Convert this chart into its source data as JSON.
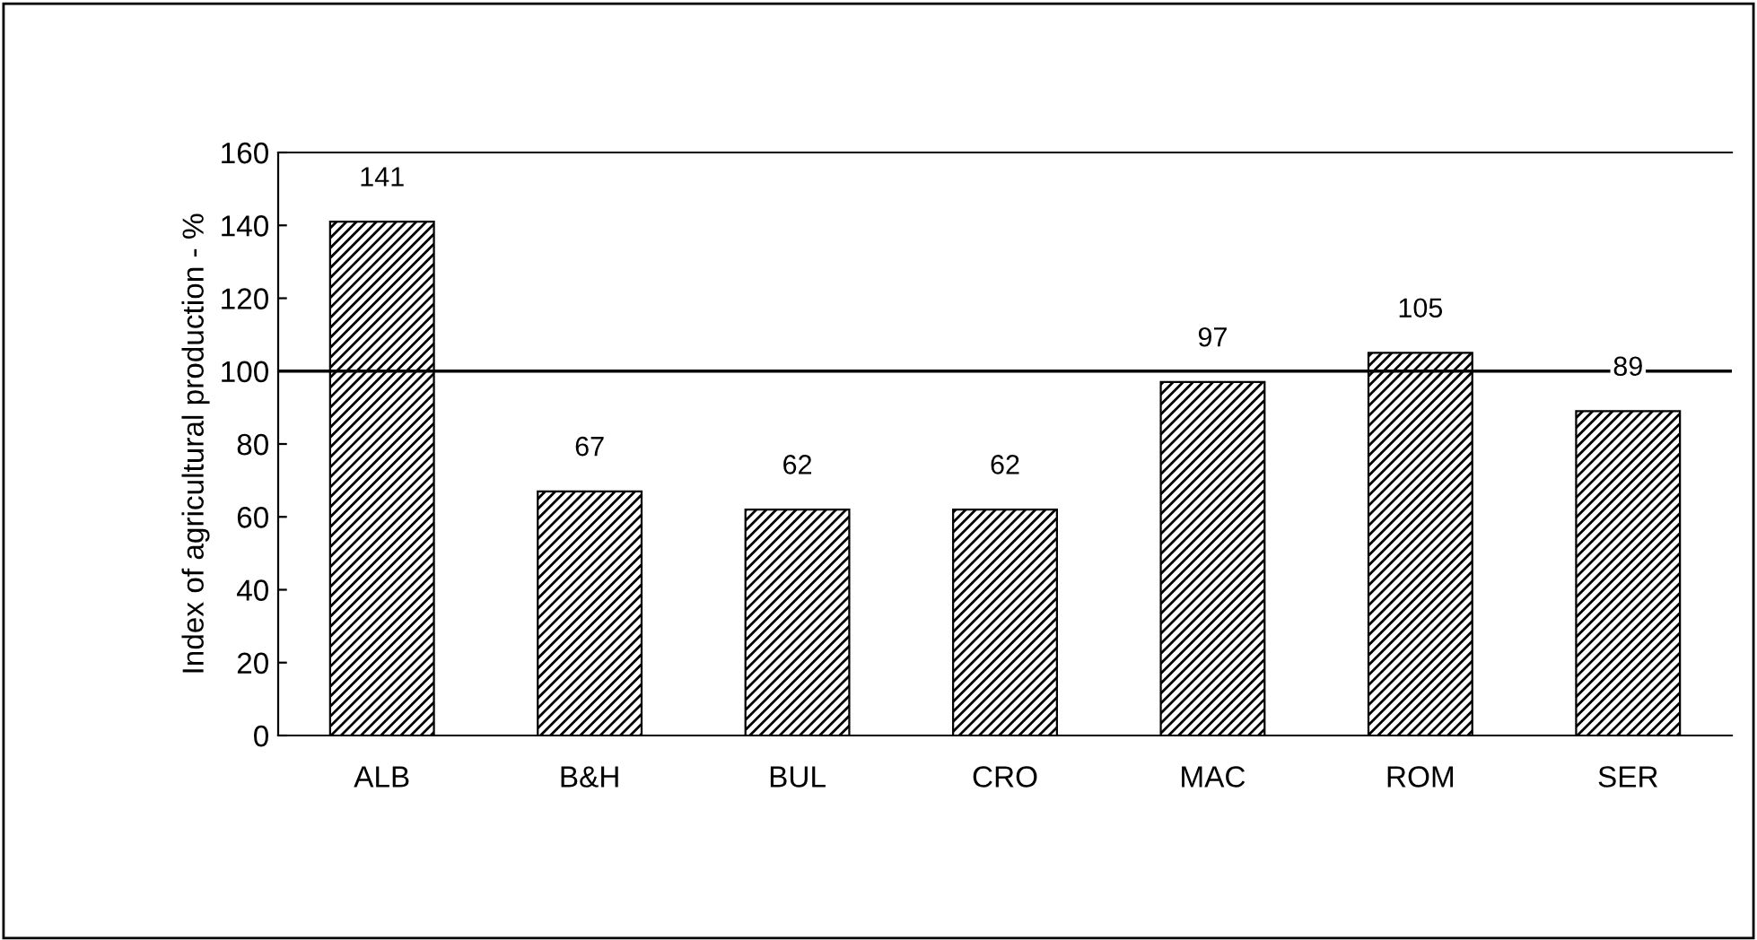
{
  "chart_data": {
    "type": "bar",
    "ylabel": "Index of agricultural production - %",
    "categories": [
      "ALB",
      "B&H",
      "BUL",
      "CRO",
      "MAC",
      "ROM",
      "SER"
    ],
    "values": [
      141,
      67,
      62,
      62,
      97,
      105,
      89
    ],
    "color": "#000000",
    "ylim": [
      0,
      160
    ],
    "yticks": [
      0,
      20,
      40,
      60,
      80,
      100,
      120,
      140,
      160
    ],
    "data_labels": true,
    "grid": false,
    "legend": false,
    "ref_lines": [
      {
        "axis": "y",
        "value": 100,
        "color": "#000000"
      }
    ]
  }
}
